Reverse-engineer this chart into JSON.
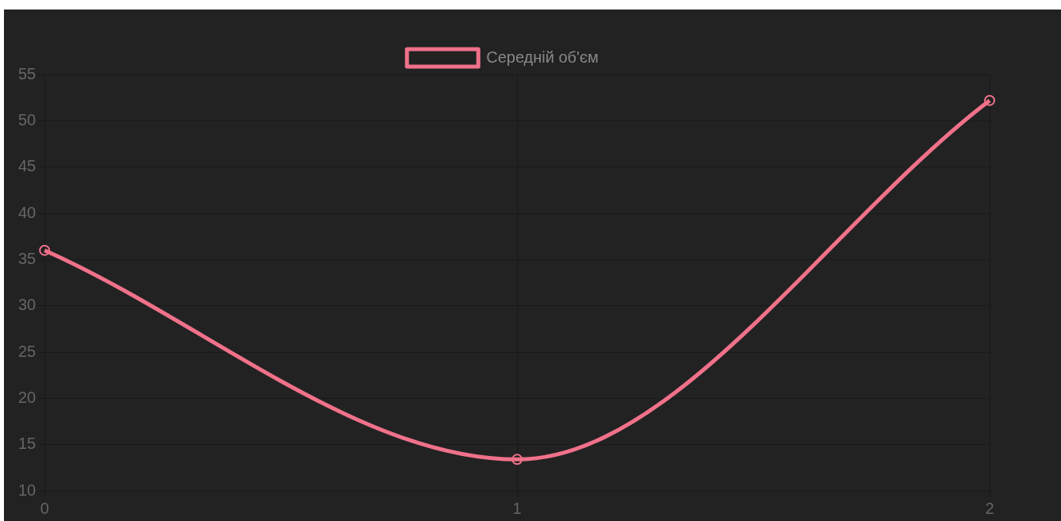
{
  "chart_data": {
    "type": "line",
    "categories": [
      "0",
      "1",
      "2"
    ],
    "series": [
      {
        "name": "Середній об'єм",
        "color": "#f0718a",
        "values": [
          36,
          13.4,
          52.2
        ]
      }
    ],
    "ylim": [
      10,
      55
    ],
    "yticks": [
      10,
      15,
      20,
      25,
      30,
      35,
      40,
      45,
      50,
      55
    ],
    "grid": true,
    "legend": "top",
    "marker": "circle",
    "line_style": "solid"
  }
}
